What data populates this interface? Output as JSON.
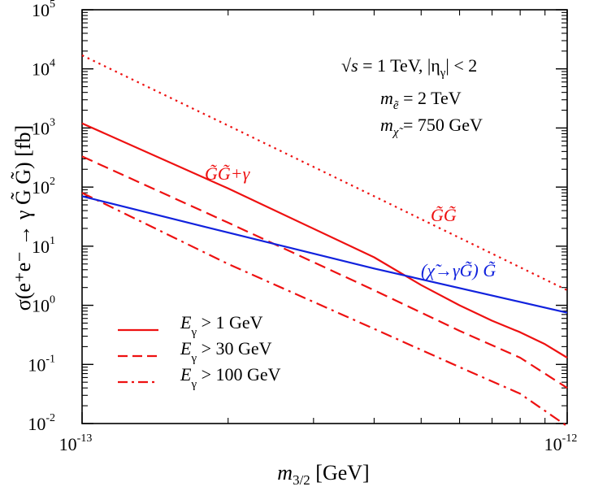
{
  "chart_data": {
    "type": "line",
    "xscale": "log",
    "yscale": "log",
    "xlim": [
      1e-13,
      1e-12
    ],
    "ylim": [
      0.01,
      100000
    ],
    "x_ticks": [
      {
        "base": "10",
        "exp": "-13"
      },
      {
        "base": "10",
        "exp": "-12"
      }
    ],
    "y_ticks": [
      {
        "base": "10",
        "exp": "-2"
      },
      {
        "base": "10",
        "exp": "-1"
      },
      {
        "base": "10",
        "exp": "0"
      },
      {
        "base": "10",
        "exp": "1"
      },
      {
        "base": "10",
        "exp": "2"
      },
      {
        "base": "10",
        "exp": "3"
      },
      {
        "base": "10",
        "exp": "4"
      },
      {
        "base": "10",
        "exp": "5"
      }
    ],
    "xlabel": {
      "main": "m",
      "sub": "3/2",
      "unit": " [GeV]"
    },
    "ylabel": "σ(e⁺e⁻ → γ G̃ G̃) [fb]",
    "annotations": {
      "line1_sqrt": "√",
      "line1_s": "s",
      "line1_rest": " = 1 TeV,  |η",
      "line1_sub": "γ",
      "line1_end": "| < 2",
      "line2_m": "m",
      "line2_sub": "ẽ",
      "line2_val": " = 2 TeV",
      "line3_m": "m",
      "line3_sub": "χ̃",
      "line3_val": " = 750 GeV"
    },
    "series": [
      {
        "name": "E_γ > 1 GeV",
        "color": "#ee1111",
        "dash": "solid",
        "x": [
          1e-13,
          2e-13,
          4e-13,
          5e-13,
          6e-13,
          7e-13,
          8e-13,
          9e-13,
          1e-12
        ],
        "y": [
          1200,
          95,
          6.5,
          2.2,
          1.0,
          0.55,
          0.35,
          0.22,
          0.13
        ]
      },
      {
        "name": "E_γ > 30 GeV",
        "color": "#ee1111",
        "dash": "dash",
        "x": [
          1e-13,
          2e-13,
          4e-13,
          6e-13,
          8e-13,
          1e-12
        ],
        "y": [
          330,
          25,
          1.8,
          0.37,
          0.13,
          0.04
        ]
      },
      {
        "name": "E_γ > 100 GeV",
        "color": "#ee1111",
        "dash": "dashdot",
        "x": [
          1e-13,
          2e-13,
          4e-13,
          6e-13,
          8e-13,
          1e-12
        ],
        "y": [
          80,
          5.0,
          0.4,
          0.09,
          0.032,
          0.009
        ]
      },
      {
        "name": "G̃G̃",
        "color": "#ee1111",
        "dash": "dot",
        "x": [
          1e-13,
          2e-13,
          4e-13,
          1e-12
        ],
        "y": [
          17000,
          1100,
          70,
          1.8
        ]
      },
      {
        "name": "(χ̃→γG̃) G̃",
        "color": "#1122dd",
        "dash": "solid",
        "x": [
          1e-13,
          2e-13,
          4e-13,
          1e-12
        ],
        "y": [
          70,
          17,
          4.2,
          0.75
        ]
      }
    ],
    "curve_labels": {
      "ggg": "G̃G̃+γ",
      "gg": "G̃G̃",
      "chi": "(χ̃→γG̃) G̃"
    },
    "legend": {
      "placement": "bottom-left",
      "items": [
        {
          "pre": "E",
          "sub": "γ",
          "post": " > 1 GeV"
        },
        {
          "pre": "E",
          "sub": "γ",
          "post": " > 30 GeV"
        },
        {
          "pre": "E",
          "sub": "γ",
          "post": " > 100 GeV"
        }
      ]
    },
    "colors": {
      "red": "#ee1111",
      "blue": "#1122dd",
      "axis": "#000000"
    }
  }
}
